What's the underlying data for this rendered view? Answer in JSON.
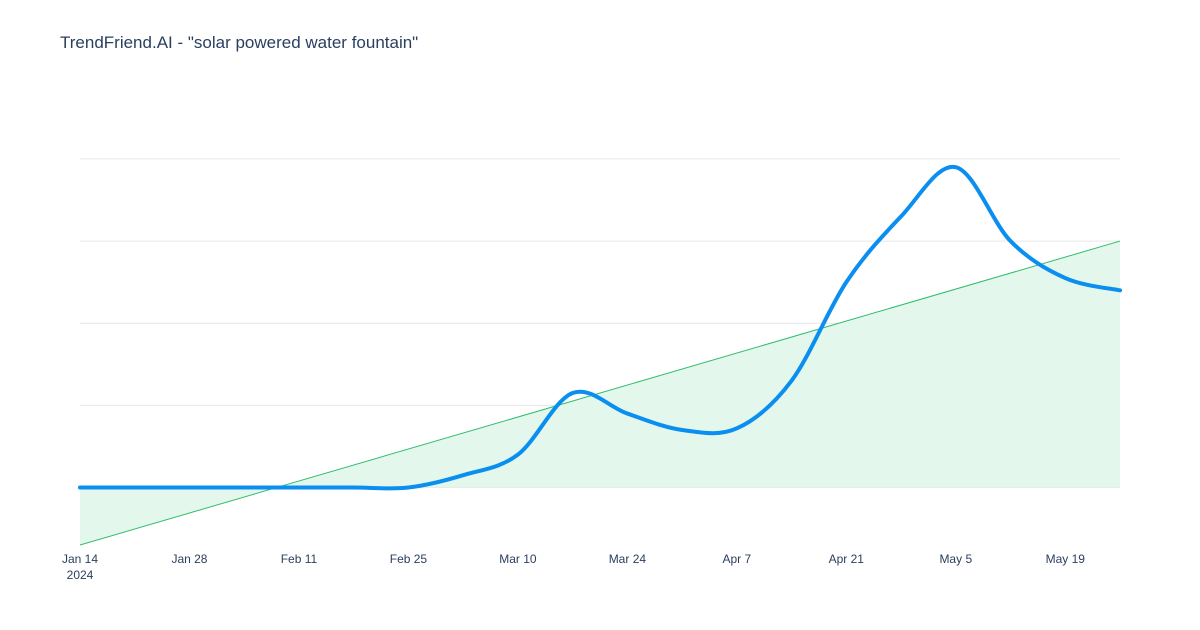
{
  "title": "TrendFriend.AI - \"solar powered water fountain\"",
  "colors": {
    "series_line": "#0a8ff0",
    "trend_line": "#2ebd6b",
    "trend_fill": "#e3f7ec",
    "grid": "#e6e6e6",
    "text": "#2a3f5f",
    "background": "#ffffff"
  },
  "chart_data": {
    "type": "line",
    "title": "TrendFriend.AI - \"solar powered water fountain\"",
    "xlabel": "",
    "ylabel": "",
    "grid": true,
    "legend": "none",
    "x_ticks": [
      {
        "date": "2024-01-14",
        "label": "Jan 14",
        "sublabel": "2024"
      },
      {
        "date": "2024-01-28",
        "label": "Jan 28",
        "sublabel": ""
      },
      {
        "date": "2024-02-11",
        "label": "Feb 11",
        "sublabel": ""
      },
      {
        "date": "2024-02-25",
        "label": "Feb 25",
        "sublabel": ""
      },
      {
        "date": "2024-03-10",
        "label": "Mar 10",
        "sublabel": ""
      },
      {
        "date": "2024-03-24",
        "label": "Mar 24",
        "sublabel": ""
      },
      {
        "date": "2024-04-07",
        "label": "Apr 7",
        "sublabel": ""
      },
      {
        "date": "2024-04-21",
        "label": "Apr 21",
        "sublabel": ""
      },
      {
        "date": "2024-05-05",
        "label": "May 5",
        "sublabel": ""
      },
      {
        "date": "2024-05-19",
        "label": "May 19",
        "sublabel": ""
      }
    ],
    "xlim": [
      "2024-01-14",
      "2024-05-26"
    ],
    "ylim": [
      -0.7,
      4.9
    ],
    "y_gridlines": [
      0,
      1,
      2,
      3,
      4
    ],
    "y_tick_labels_shown": false,
    "series": [
      {
        "x": [
          "2024-01-14",
          "2024-01-21",
          "2024-01-28",
          "2024-02-04",
          "2024-02-11",
          "2024-02-18",
          "2024-02-25",
          "2024-03-03",
          "2024-03-10",
          "2024-03-17",
          "2024-03-24",
          "2024-03-31",
          "2024-04-07",
          "2024-04-14",
          "2024-04-21",
          "2024-04-28",
          "2024-05-05",
          "2024-05-12",
          "2024-05-19",
          "2024-05-26"
        ],
        "values": [
          0,
          0,
          0,
          0,
          0,
          0,
          0,
          0.15,
          0.4,
          1.15,
          0.9,
          0.7,
          0.72,
          1.3,
          2.5,
          3.3,
          3.9,
          3.0,
          2.55,
          2.4
        ],
        "line_width": 4
      }
    ],
    "trendline": {
      "x": [
        "2024-01-14",
        "2024-05-26"
      ],
      "values": [
        -0.7,
        3.0
      ],
      "filled": true
    }
  }
}
